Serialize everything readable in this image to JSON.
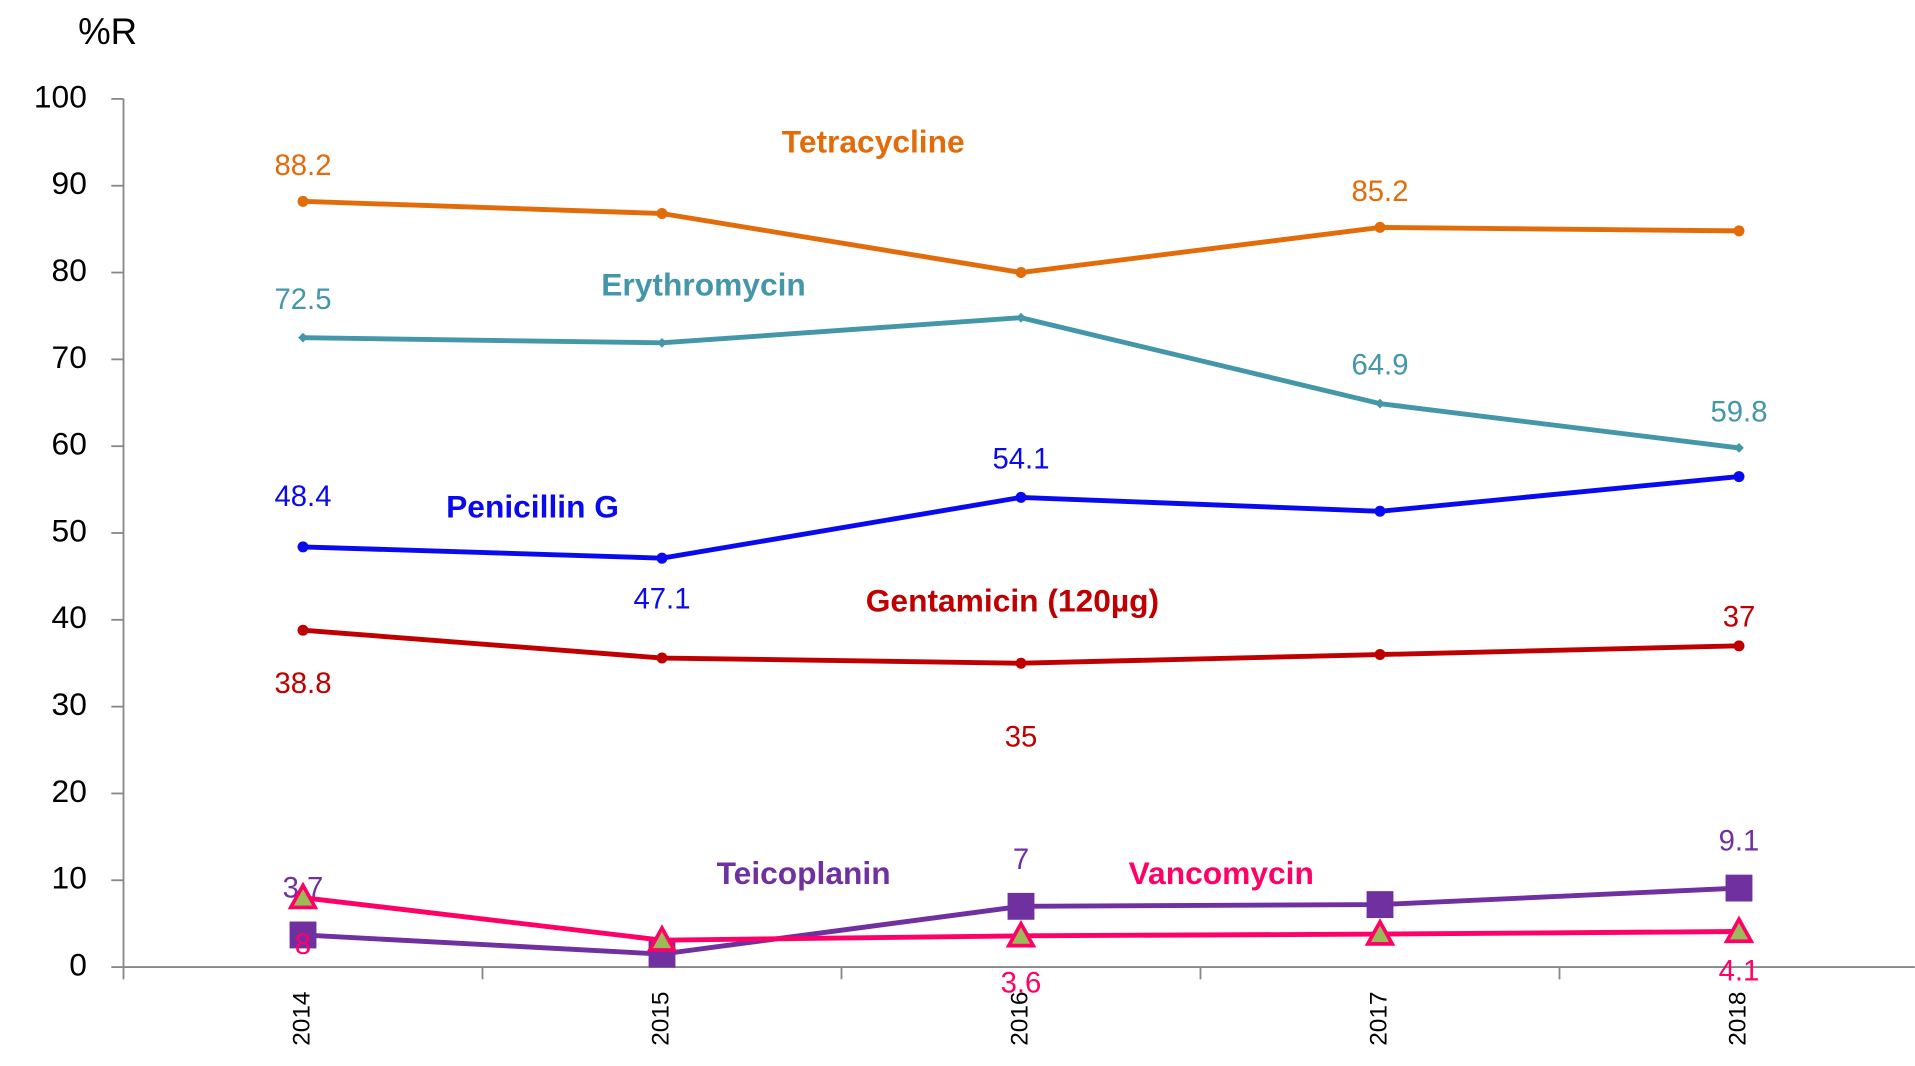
{
  "chart_data": {
    "type": "line",
    "y_label": "%R",
    "categories": [
      "2014",
      "2015",
      "2016",
      "2017",
      "2018"
    ],
    "ylim": [
      0,
      100
    ],
    "yticks": [
      0,
      10,
      20,
      30,
      40,
      50,
      60,
      70,
      80,
      90,
      100
    ],
    "series": [
      {
        "name": "Tetracycline",
        "color": "#e36c0a",
        "marker": "circle",
        "values": [
          88.2,
          86.8,
          80.0,
          85.2,
          84.8
        ],
        "value_labels": [
          "88.2",
          null,
          null,
          "85.2",
          null
        ]
      },
      {
        "name": "Erythromycin",
        "color": "#4397a8",
        "marker": "diamond",
        "values": [
          72.5,
          71.9,
          74.8,
          64.9,
          59.8
        ],
        "value_labels": [
          "72.5",
          null,
          null,
          "64.9",
          "59.8"
        ]
      },
      {
        "name": "Penicillin G",
        "color": "#0a0aee",
        "marker": "circle",
        "values": [
          48.4,
          47.1,
          54.1,
          52.5,
          56.5
        ],
        "value_labels": [
          "48.4",
          "47.1",
          "54.1",
          null,
          null
        ]
      },
      {
        "name": "Gentamicin (120µg)",
        "color": "#c00000",
        "marker": "circle",
        "values": [
          38.8,
          35.6,
          35,
          36.0,
          37
        ],
        "value_labels": [
          "38.8",
          null,
          "35",
          null,
          "37"
        ]
      },
      {
        "name": "Teicoplanin",
        "color": "#7030a0",
        "marker": "square",
        "values": [
          3.7,
          1.5,
          7,
          7.2,
          9.1
        ],
        "value_labels": [
          "3.7",
          null,
          "7",
          null,
          "9.1"
        ]
      },
      {
        "name": "Vancomycin",
        "color": "#ff0066",
        "marker": "triangle",
        "values": [
          8,
          3.1,
          3.6,
          3.8,
          4.1
        ],
        "value_labels": [
          "8",
          null,
          "3.6",
          null,
          "4.1"
        ]
      }
    ]
  }
}
